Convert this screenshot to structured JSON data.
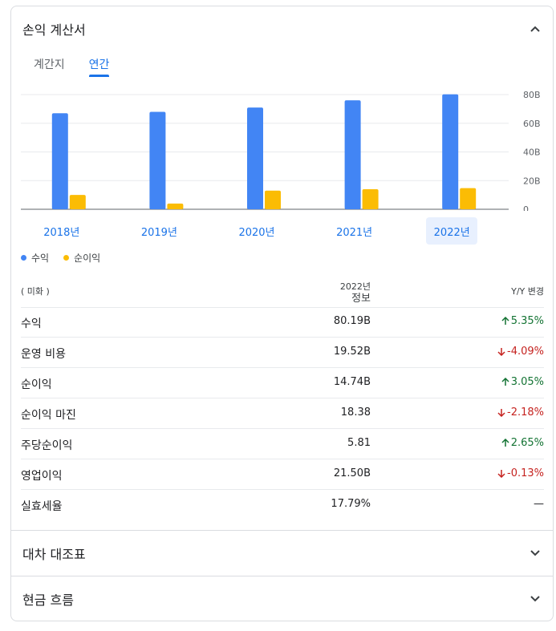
{
  "income_statement": {
    "title": "손익 계산서",
    "tabs": [
      {
        "label": "계간지",
        "active": false
      },
      {
        "label": "연간",
        "active": true
      }
    ]
  },
  "chart_data": {
    "type": "bar",
    "categories": [
      "2018년",
      "2019년",
      "2020년",
      "2021년",
      "2022년"
    ],
    "series": [
      {
        "name": "수익",
        "color": "#4285f4",
        "values": [
          67,
          68,
          71,
          76,
          80.19
        ]
      },
      {
        "name": "순이익",
        "color": "#fbbc04",
        "values": [
          10,
          4,
          13,
          14,
          14.74
        ]
      }
    ],
    "y_ticks": [
      "0",
      "20B",
      "40B",
      "60B",
      "80B"
    ],
    "ylim": [
      0,
      80
    ],
    "selected_category": "2022년"
  },
  "table": {
    "currency": "( 미화 )",
    "year_header": "2022년",
    "year_header_sub": "정보",
    "change_header": "Y/Y 변경",
    "rows": [
      {
        "name": "수익",
        "value": "80.19B",
        "change": "5.35%",
        "dir": "up"
      },
      {
        "name": "운영 비용",
        "value": "19.52B",
        "change": "-4.09%",
        "dir": "down"
      },
      {
        "name": "순이익",
        "value": "14.74B",
        "change": "3.05%",
        "dir": "up"
      },
      {
        "name": "순이익 마진",
        "value": "18.38",
        "change": "-2.18%",
        "dir": "down"
      },
      {
        "name": "주당순이익",
        "value": "5.81",
        "change": "2.65%",
        "dir": "up"
      },
      {
        "name": "영업이익",
        "value": "21.50B",
        "change": "-0.13%",
        "dir": "down"
      },
      {
        "name": "실효세율",
        "value": "17.79%",
        "change": "—",
        "dir": "none"
      }
    ]
  },
  "balance_sheet": {
    "title": "대차 대조표"
  },
  "cash_flow": {
    "title": "현금 흐름"
  },
  "icons": {
    "collapse": "chevron-up-icon",
    "expand": "chevron-down-icon",
    "up_arrow": "arrow-up-icon",
    "down_arrow": "arrow-down-icon"
  }
}
